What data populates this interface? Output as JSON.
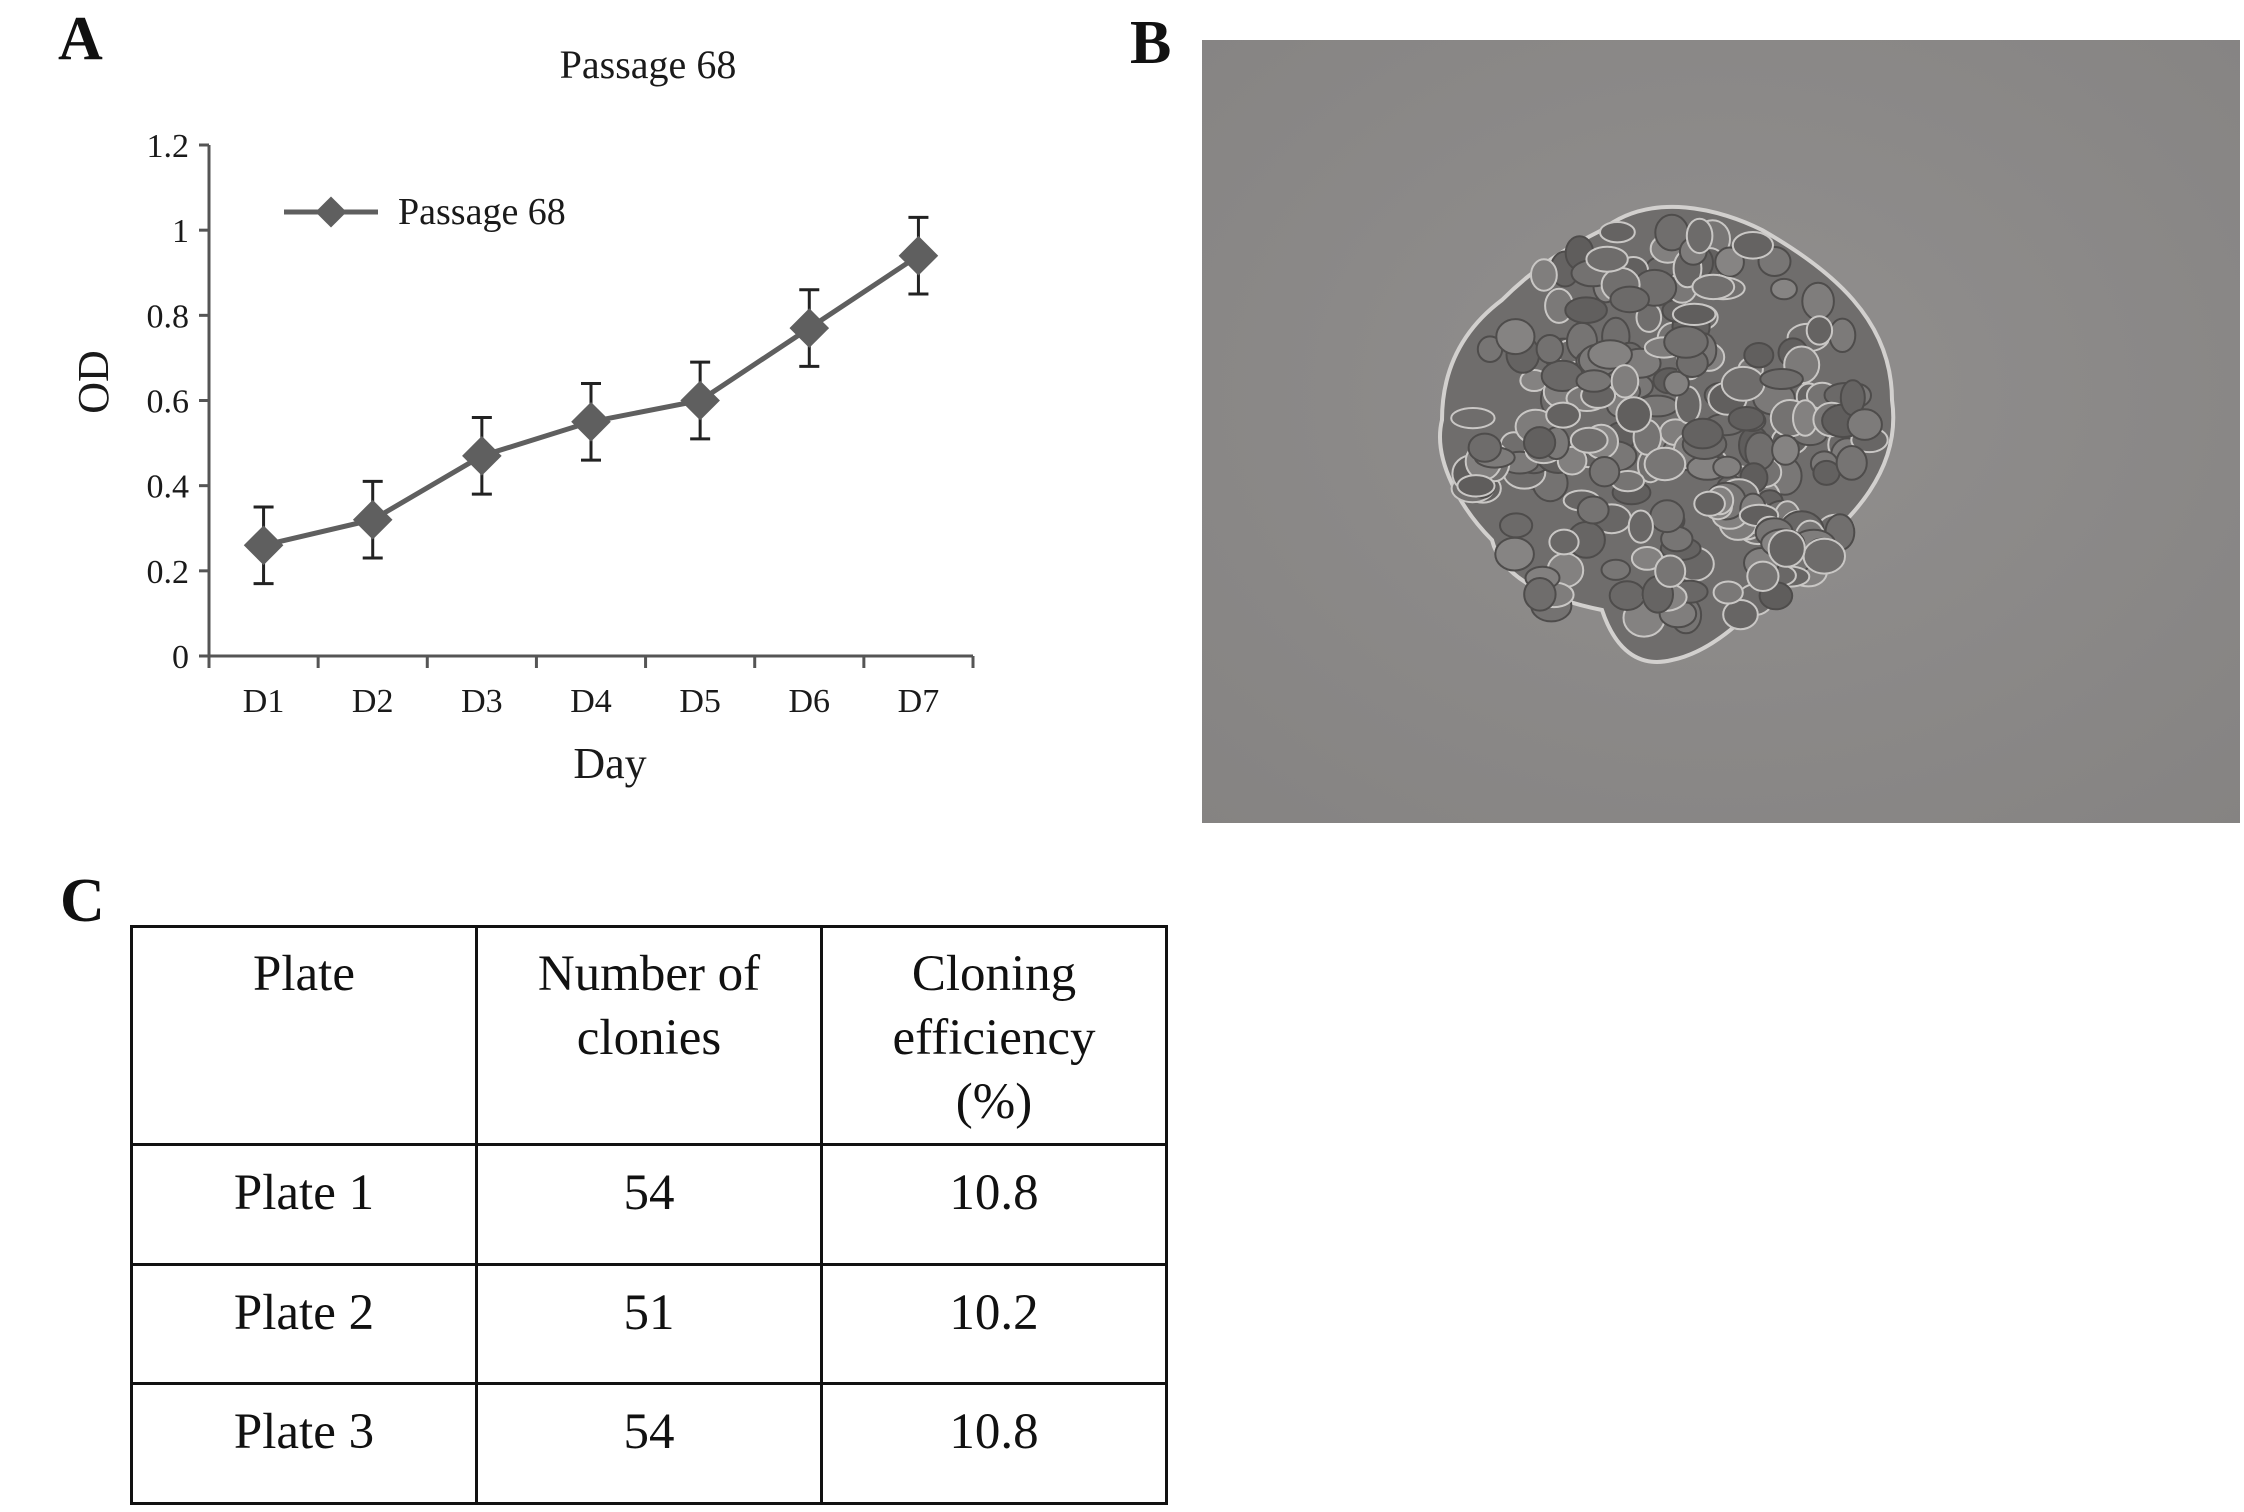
{
  "panels": {
    "a": "A",
    "b": "B",
    "c": "C"
  },
  "chart_data": {
    "type": "line",
    "title": "Passage 68",
    "xlabel": "Day",
    "ylabel": "OD",
    "categories": [
      "D1",
      "D2",
      "D3",
      "D4",
      "D5",
      "D6",
      "D7"
    ],
    "ylim": [
      0,
      1.2
    ],
    "yticks": [
      "0",
      "0.2",
      "0.4",
      "0.6",
      "0.8",
      "1",
      "1.2"
    ],
    "series": [
      {
        "name": "Passage 68",
        "values": [
          0.26,
          0.32,
          0.47,
          0.55,
          0.6,
          0.77,
          0.94
        ],
        "error": [
          0.09,
          0.09,
          0.09,
          0.09,
          0.09,
          0.09,
          0.09
        ]
      }
    ],
    "legend": "top-left",
    "color": "#5f5f5f"
  },
  "micrograph": {
    "subject": "cell colony",
    "background": "#8b8a89"
  },
  "table": {
    "headers": [
      [
        "Plate"
      ],
      [
        "Number of",
        "clonies"
      ],
      [
        "Cloning",
        "efficiency",
        "(%)"
      ]
    ],
    "rows": [
      [
        "Plate 1",
        "54",
        "10.8"
      ],
      [
        "Plate 2",
        "51",
        "10.2"
      ],
      [
        "Plate 3",
        "54",
        "10.8"
      ]
    ]
  }
}
